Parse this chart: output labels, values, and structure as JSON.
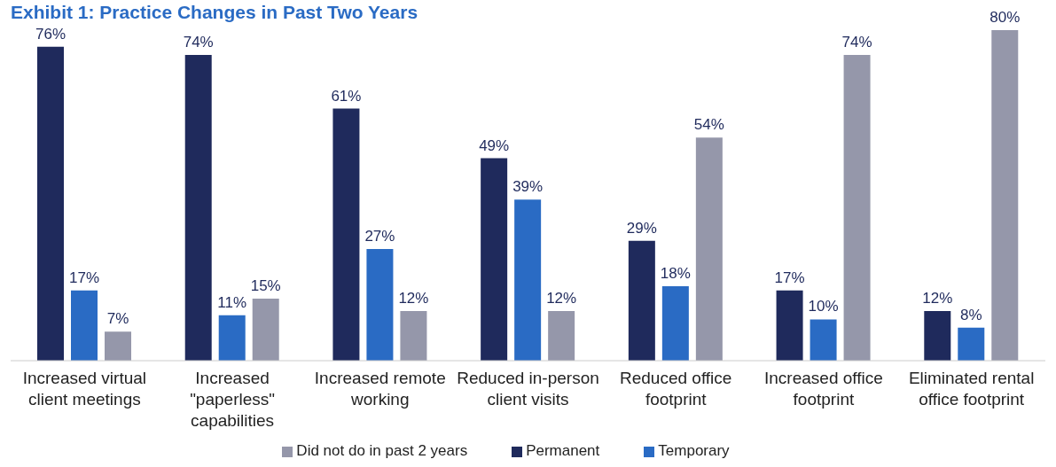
{
  "chart_data": {
    "type": "bar",
    "title": "Exhibit 1: Practice Changes in Past Two Years",
    "categories": [
      "Increased virtual client meetings",
      "Increased \"paperless\" capabilities",
      "Increased remote working",
      "Reduced in-person client visits",
      "Reduced office footprint",
      "Increased office footprint",
      "Eliminated rental office footprint"
    ],
    "series": [
      {
        "name": "Permanent",
        "color": "#1f2a5c",
        "values": [
          76,
          74,
          61,
          49,
          29,
          17,
          12
        ],
        "value_labels": [
          "76%",
          "74%",
          "61%",
          "49%",
          "29%",
          "17%",
          "12%"
        ]
      },
      {
        "name": "Temporary",
        "color": "#2a6bc4",
        "values": [
          17,
          11,
          27,
          39,
          18,
          10,
          8
        ],
        "value_labels": [
          "17%",
          "11%",
          "27%",
          "39%",
          "18%",
          "10%",
          "8%"
        ]
      },
      {
        "name": "Did not do in past 2 years",
        "color": "#9597aa",
        "values": [
          7,
          15,
          12,
          12,
          54,
          74,
          80
        ],
        "value_labels": [
          "7%",
          "15%",
          "12%",
          "12%",
          "54%",
          "74%",
          "80%"
        ]
      }
    ],
    "grid": false,
    "legend": "bottom"
  }
}
